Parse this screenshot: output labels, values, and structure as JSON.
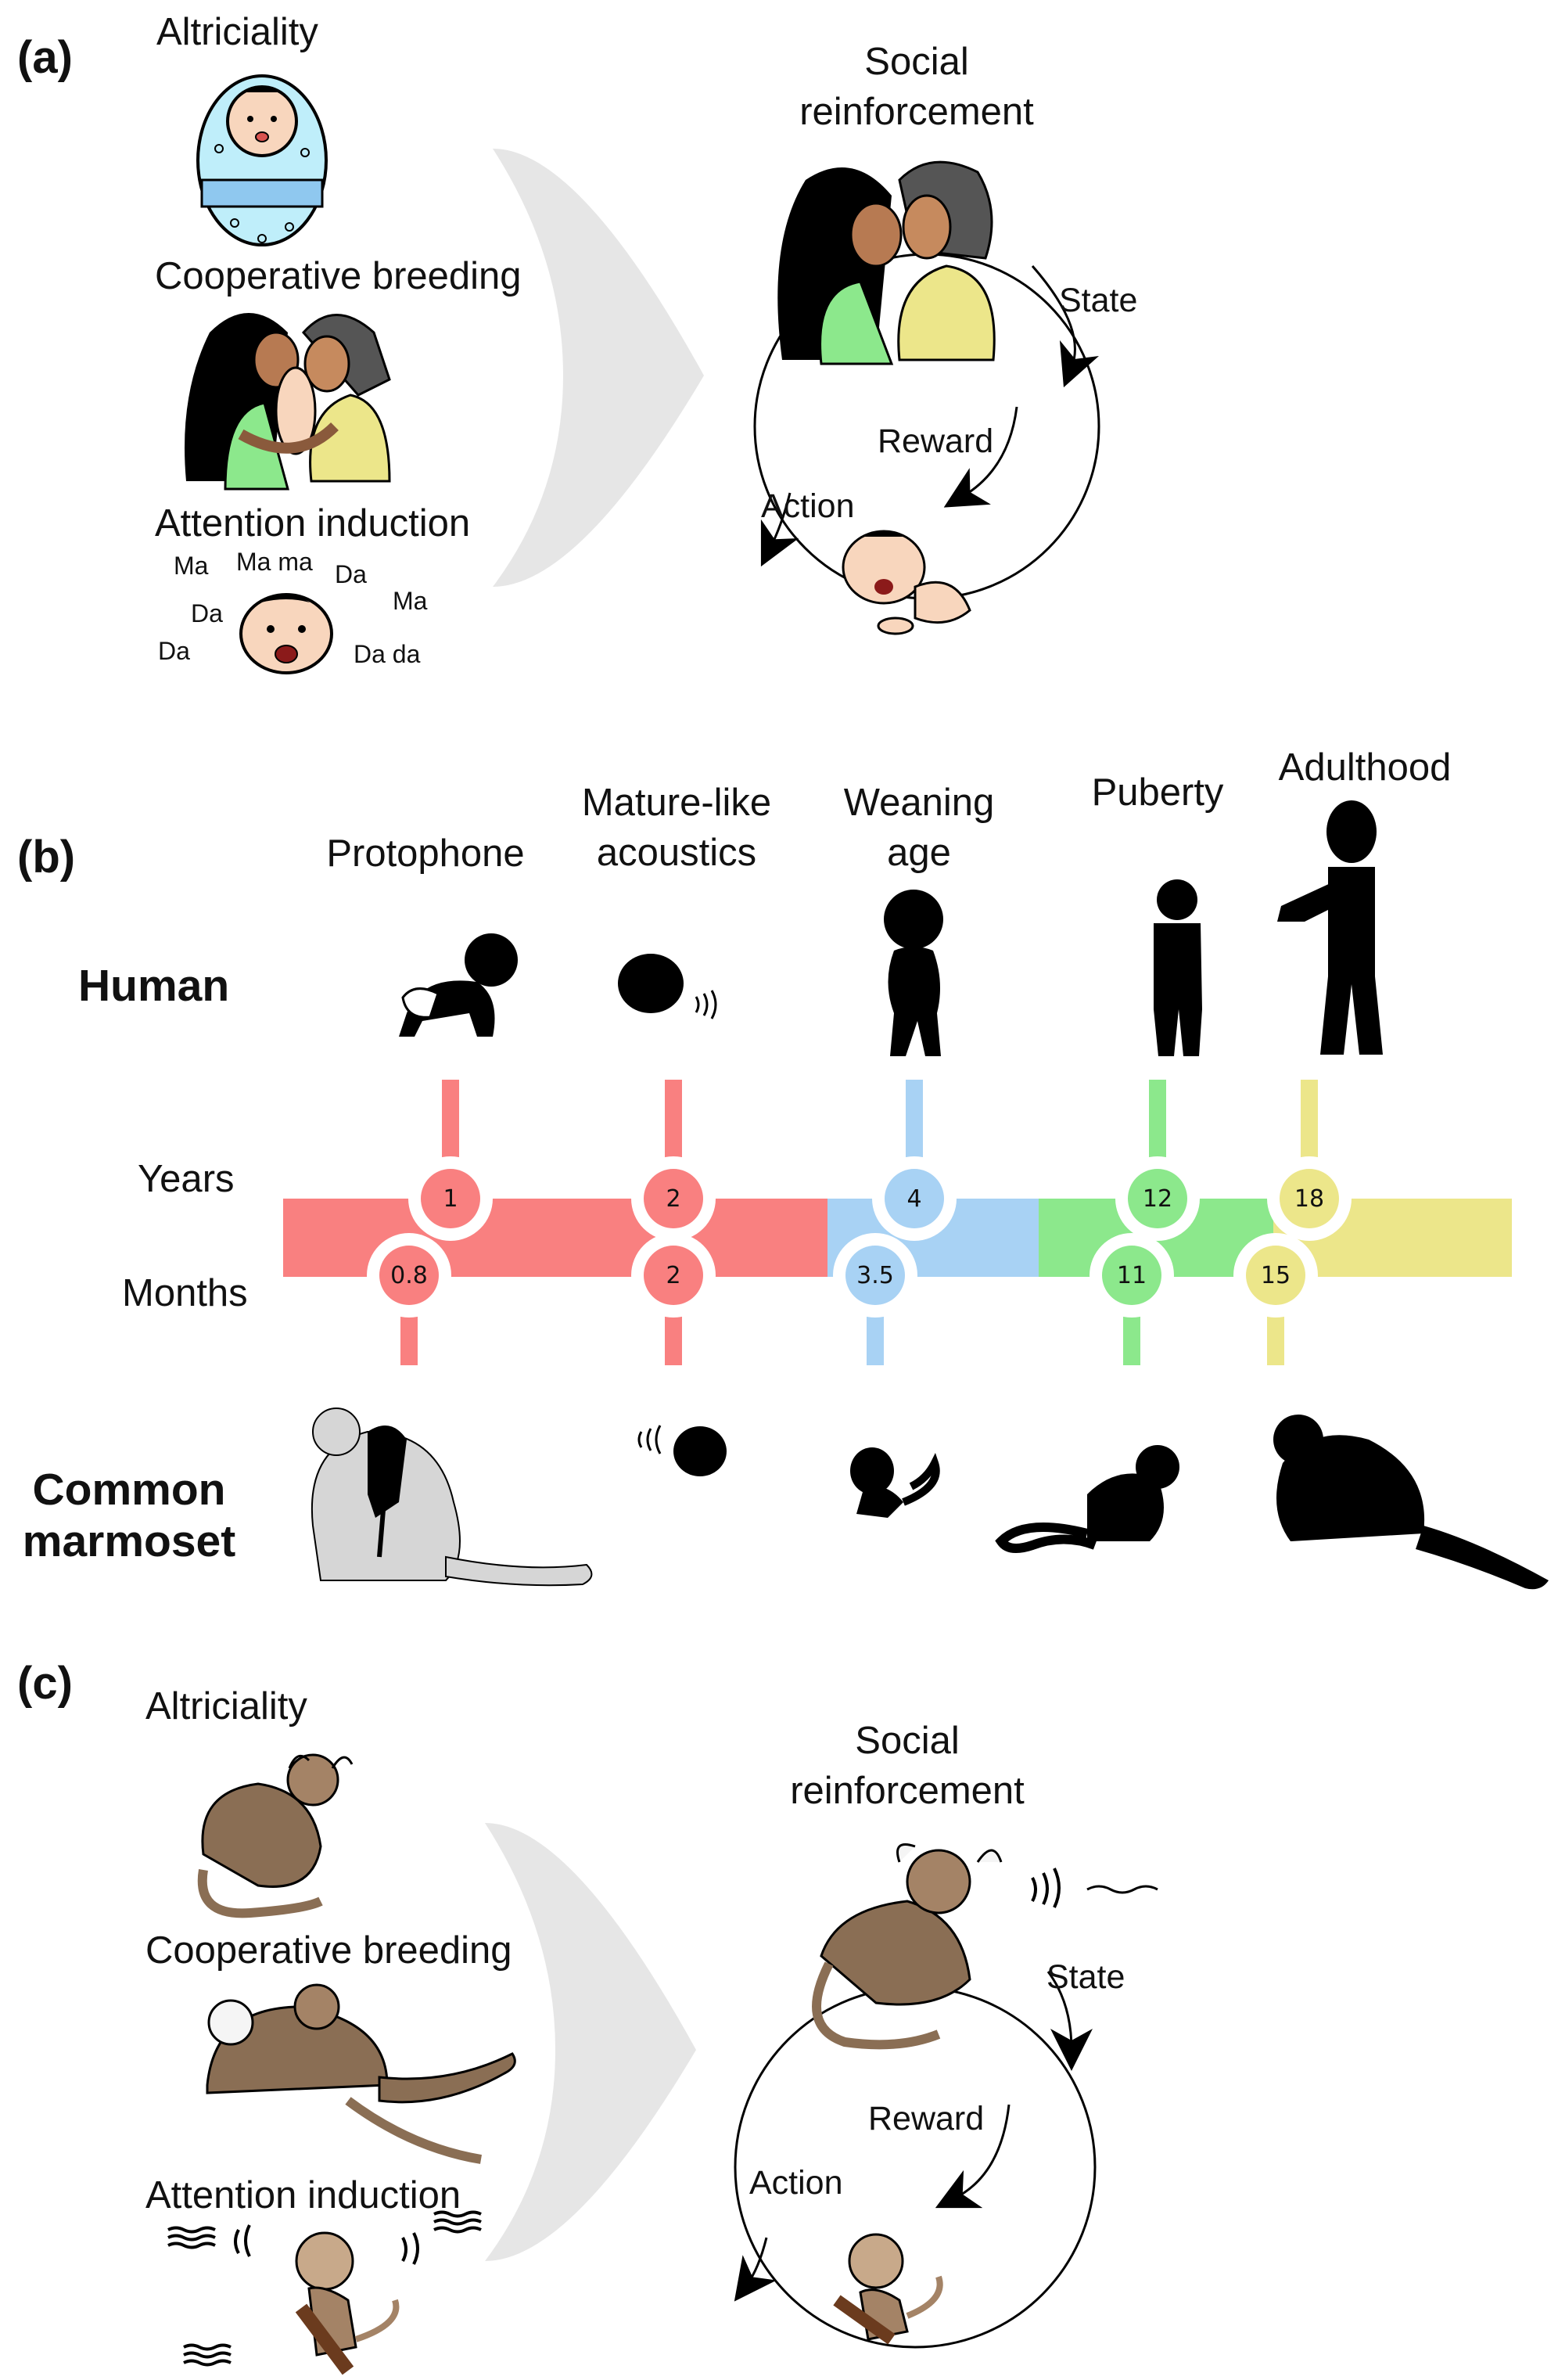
{
  "panel_a": {
    "label": "(a)",
    "factors": [
      "Altriciality",
      "Cooperative breeding",
      "Attention induction"
    ],
    "babble": [
      "Ma",
      "Ma ma",
      "Da",
      "Ma",
      "Da",
      "Da",
      "Da da"
    ],
    "loop": {
      "title_line1": "Social",
      "title_line2": "reinforcement",
      "state": "State",
      "reward": "Reward",
      "action": "Action"
    }
  },
  "panel_b": {
    "label": "(b)",
    "stages": [
      {
        "name": "Protophone",
        "name2": ""
      },
      {
        "name": "Mature-like",
        "name2": "acoustics"
      },
      {
        "name": "Weaning",
        "name2": "age"
      },
      {
        "name": "Puberty",
        "name2": ""
      },
      {
        "name": "Adulthood",
        "name2": ""
      }
    ],
    "species": {
      "human": "Human",
      "marmoset_line1": "Common",
      "marmoset_line2": "marmoset"
    },
    "axis": {
      "years": "Years",
      "months": "Months"
    },
    "years_values": [
      "1",
      "2",
      "4",
      "12",
      "18"
    ],
    "months_values": [
      "0.8",
      "2",
      "3.5",
      "11",
      "15"
    ],
    "colors": {
      "red": "#f98080",
      "blue": "#a8d2f4",
      "green": "#8ce88c",
      "yellow": "#ece68a"
    }
  },
  "panel_c": {
    "label": "(c)",
    "factors": [
      "Altriciality",
      "Cooperative breeding",
      "Attention induction"
    ],
    "loop": {
      "title_line1": "Social",
      "title_line2": "reinforcement",
      "state": "State",
      "reward": "Reward",
      "action": "Action"
    }
  }
}
